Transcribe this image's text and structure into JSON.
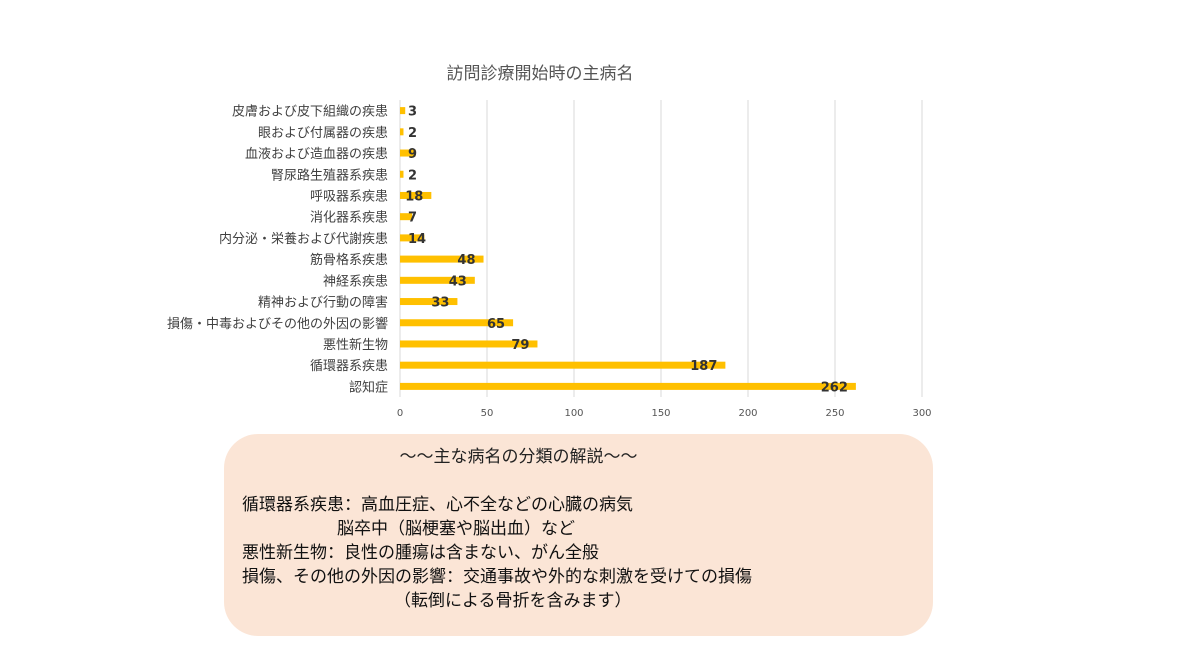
{
  "chart_data": {
    "type": "bar",
    "orientation": "horizontal",
    "title": "訪問診療開始時の主病名",
    "categories": [
      "皮膚および皮下組織の疾患",
      "眼および付属器の疾患",
      "血液および造血器の疾患",
      "腎尿路生殖器系疾患",
      "呼吸器系疾患",
      "消化器系疾患",
      "内分泌・栄養および代謝疾患",
      "筋骨格系疾患",
      "神経系疾患",
      "精神および行動の障害",
      "損傷・中毒およびその他の外因の影響",
      "悪性新生物",
      "循環器系疾患",
      "認知症"
    ],
    "values": [
      3,
      2,
      9,
      2,
      18,
      7,
      14,
      48,
      43,
      33,
      65,
      79,
      187,
      262
    ],
    "xlim": [
      0,
      300
    ],
    "xticks": [
      0,
      50,
      100,
      150,
      200,
      250,
      300
    ],
    "grid": "vertical",
    "bar_color": "#ffc000",
    "data_labels": true
  },
  "note": {
    "title": "～～主な病名の分類の解説～～",
    "lines": [
      "循環器系疾患：高血圧症、心不全などの心臓の病気",
      "脳卒中（脳梗塞や脳出血）など",
      "悪性新生物：良性の腫瘍は含まない、がん全般",
      "損傷、その他の外因の影響：交通事故や外的な刺激を受けての損傷",
      "（転倒による骨折を含みます）"
    ]
  }
}
